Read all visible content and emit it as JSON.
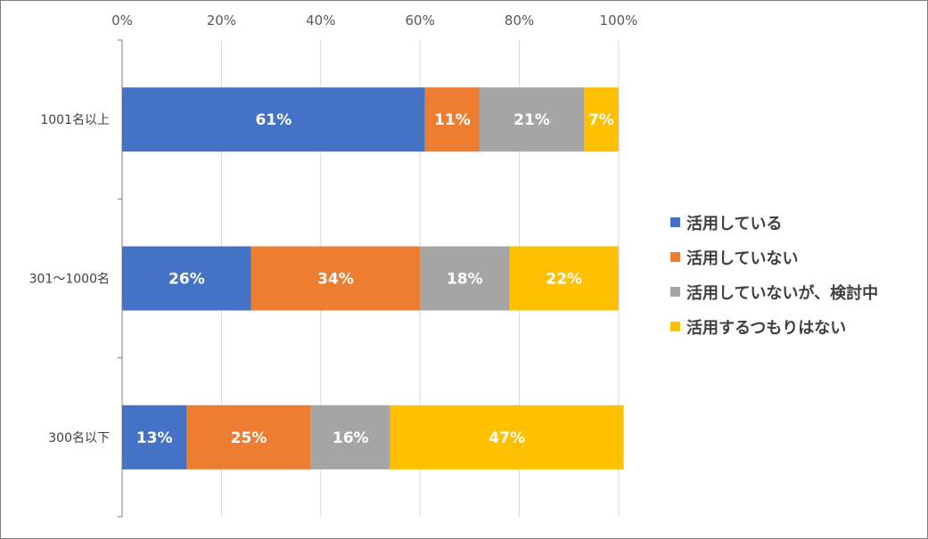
{
  "chart_data": {
    "type": "bar",
    "orientation": "horizontal-stacked-100",
    "categories": [
      "1001名以上",
      "301～1000名",
      "300名以下"
    ],
    "series": [
      {
        "name": "活用している",
        "color": "#4472c4",
        "values": [
          61,
          26,
          13
        ],
        "labels": [
          "61%",
          "26%",
          "13%"
        ]
      },
      {
        "name": "活用していない",
        "color": "#ed7d31",
        "values": [
          11,
          34,
          25
        ],
        "labels": [
          "11%",
          "34%",
          "25%"
        ]
      },
      {
        "name": "活用していないが、検討中",
        "color": "#a5a5a5",
        "values": [
          21,
          18,
          16
        ],
        "labels": [
          "21%",
          "18%",
          "16%"
        ]
      },
      {
        "name": "活用するつもりはない",
        "color": "#ffc000",
        "values": [
          7,
          22,
          47
        ],
        "labels": [
          "7%",
          "22%",
          "47%"
        ]
      }
    ],
    "x_ticks": [
      "0%",
      "20%",
      "40%",
      "60%",
      "80%",
      "100%"
    ],
    "xlim": [
      0,
      100
    ],
    "grid": true,
    "legend": "right"
  }
}
